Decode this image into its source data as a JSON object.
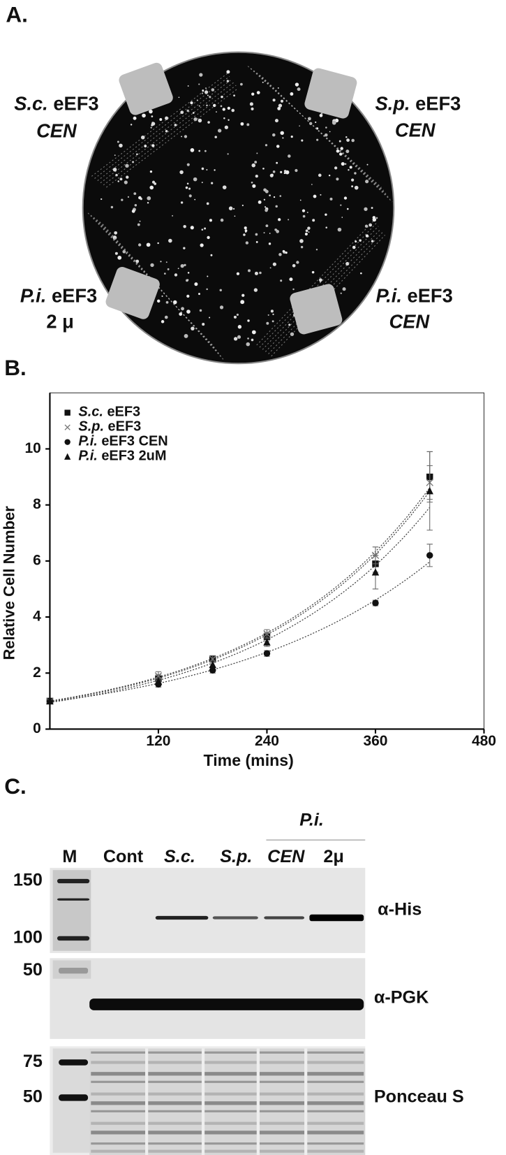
{
  "panel_a": {
    "label": "A.",
    "strains": [
      {
        "species": "S.c.",
        "protein": "eEF3",
        "plasmid": "CEN"
      },
      {
        "species": "S.p.",
        "protein": "eEF3",
        "plasmid": "CEN"
      },
      {
        "species": "P.i.",
        "protein": "eEF3",
        "plasmid": "2 μ"
      },
      {
        "species": "P.i.",
        "protein": "eEF3",
        "plasmid": "CEN"
      }
    ]
  },
  "panel_b_label": "B.",
  "chart_data": {
    "type": "scatter",
    "x_label": "Time (mins)",
    "y_label": "Relative Cell Number",
    "x": [
      0,
      120,
      180,
      240,
      360,
      420
    ],
    "series": [
      {
        "name": "S.c. eEF3",
        "color": "#111111",
        "marker": "square",
        "values": [
          1,
          1.8,
          2.5,
          3.3,
          5.9,
          9.0
        ],
        "errors": [
          0.05,
          0.15,
          0.12,
          0.15,
          0.3,
          0.9
        ]
      },
      {
        "name": "S.p. eEF3",
        "color": "#777777",
        "marker": "cross",
        "values": [
          1,
          1.9,
          2.5,
          3.4,
          6.2,
          8.8
        ],
        "errors": [
          0.05,
          0.15,
          0.12,
          0.15,
          0.3,
          0.6
        ]
      },
      {
        "name": "P.i. eEF3 CEN",
        "color": "#111111",
        "marker": "circle",
        "values": [
          1,
          1.6,
          2.1,
          2.7,
          4.5,
          6.2
        ],
        "errors": [
          0.05,
          0.1,
          0.1,
          0.1,
          0.1,
          0.4
        ]
      },
      {
        "name": "P.i. eEF3 2uM",
        "color": "#111111",
        "marker": "triangle",
        "values": [
          1,
          1.7,
          2.3,
          3.1,
          5.6,
          8.5
        ],
        "errors": [
          0.05,
          0.1,
          0.1,
          0.15,
          0.6,
          1.4
        ]
      }
    ],
    "xlim": [
      0,
      480
    ],
    "xticks": [
      120,
      240,
      360,
      480
    ],
    "ylim": [
      0,
      12
    ],
    "yticks": [
      0,
      2,
      4,
      6,
      8,
      10
    ],
    "trend_lines": true
  },
  "panel_c": {
    "label": "C.",
    "group": "P.i.",
    "lanes": [
      "M",
      "Cont",
      "S.c.",
      "S.p.",
      "CEN",
      "2μ"
    ],
    "markers": [
      150,
      100,
      50,
      75,
      50
    ],
    "blots": [
      "α-His",
      "α-PGK",
      "Ponceau S"
    ]
  }
}
